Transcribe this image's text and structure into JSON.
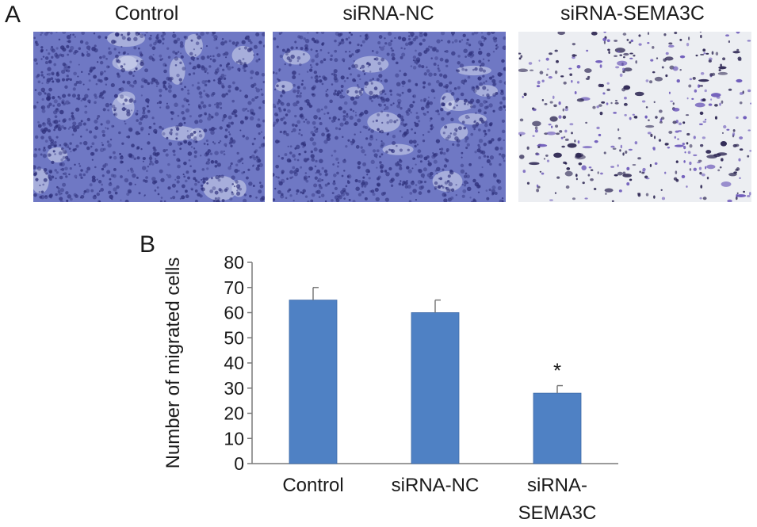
{
  "panel_a": {
    "label": "A",
    "images": [
      {
        "title": "Control",
        "density": "dense"
      },
      {
        "title": "siRNA-NC",
        "density": "dense"
      },
      {
        "title": "siRNA-SEMA3C",
        "density": "sparse"
      }
    ]
  },
  "colors": {
    "bar": "#4f81c4",
    "bar_stroke": "#3d6aa8",
    "axis": "#7a7a7a",
    "stain_dense_bg": "#6f78c4",
    "stain_sparse_bg": "#eceef2",
    "cell": "#2d2f7a"
  },
  "chart_data": {
    "panel_label": "B",
    "type": "bar",
    "categories": [
      [
        "Control"
      ],
      [
        "siRNA-NC"
      ],
      [
        "siRNA-",
        "SEMA3C"
      ]
    ],
    "values": [
      65,
      60,
      28
    ],
    "errors": [
      5,
      5,
      3
    ],
    "annotations": [
      "",
      "",
      "*"
    ],
    "ylabel": "Number of migrated cells",
    "xlabel": "",
    "ylim": [
      0,
      80
    ],
    "yticks": [
      0,
      10,
      20,
      30,
      40,
      50,
      60,
      70,
      80
    ],
    "grid": false,
    "legend": "none"
  }
}
